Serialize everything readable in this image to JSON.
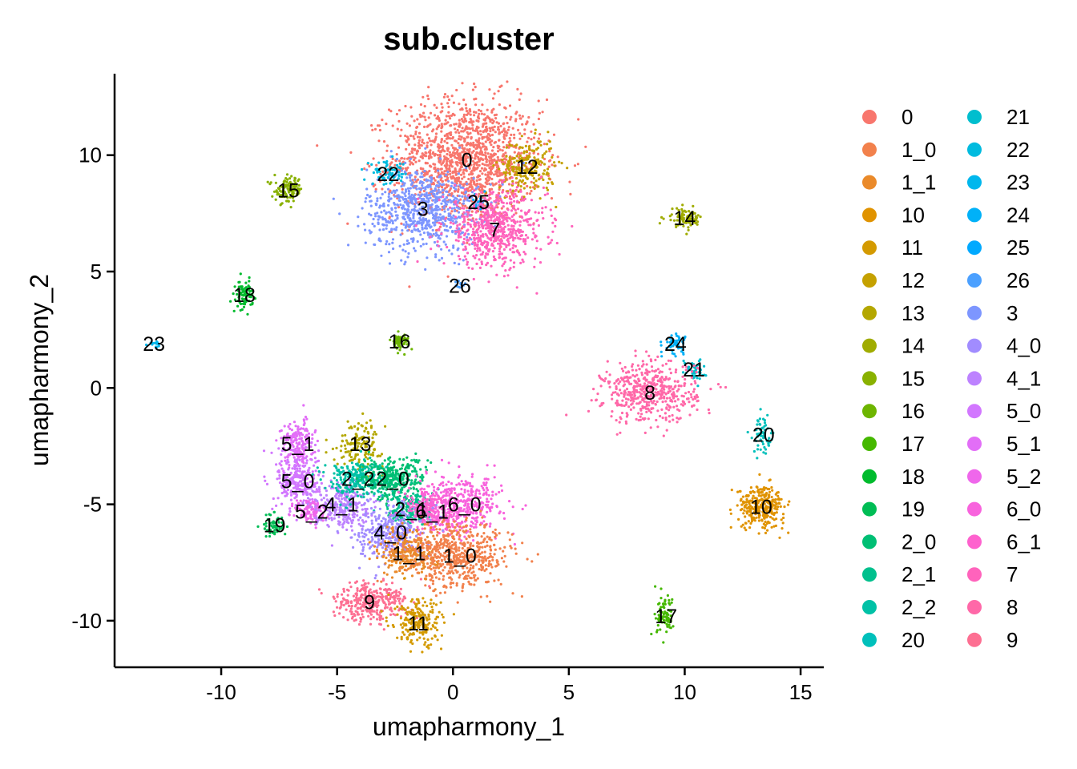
{
  "chart_data": {
    "type": "scatter",
    "title": "sub.cluster",
    "xlabel": "umapharmony_1",
    "ylabel": "umapharmony_2",
    "xlim": [
      -14.6,
      16.0
    ],
    "ylim": [
      -12.0,
      13.5
    ],
    "xticks": [
      -10,
      -5,
      0,
      5,
      10,
      15
    ],
    "yticks": [
      -10,
      -5,
      0,
      5,
      10
    ],
    "legend_position": "right",
    "grid": false,
    "legend": [
      {
        "name": "0",
        "color": "#F8766D"
      },
      {
        "name": "1_0",
        "color": "#F2814C"
      },
      {
        "name": "1_1",
        "color": "#EA8A2A"
      },
      {
        "name": "10",
        "color": "#E09300"
      },
      {
        "name": "11",
        "color": "#D49A00"
      },
      {
        "name": "12",
        "color": "#C5A100"
      },
      {
        "name": "13",
        "color": "#B4A700"
      },
      {
        "name": "14",
        "color": "#A0AC00"
      },
      {
        "name": "15",
        "color": "#89B100"
      },
      {
        "name": "16",
        "color": "#6DB500"
      },
      {
        "name": "17",
        "color": "#45B800"
      },
      {
        "name": "18",
        "color": "#00BB2D"
      },
      {
        "name": "19",
        "color": "#00BD55"
      },
      {
        "name": "2_0",
        "color": "#00BF74"
      },
      {
        "name": "2_1",
        "color": "#00C08D"
      },
      {
        "name": "2_2",
        "color": "#00C1A6"
      },
      {
        "name": "20",
        "color": "#00C0BB"
      },
      {
        "name": "21",
        "color": "#00BECE"
      },
      {
        "name": "22",
        "color": "#00BBDF"
      },
      {
        "name": "23",
        "color": "#00B7ED"
      },
      {
        "name": "24",
        "color": "#00B1F8"
      },
      {
        "name": "25",
        "color": "#00A9FF"
      },
      {
        "name": "26",
        "color": "#4BA0FF"
      },
      {
        "name": "3",
        "color": "#7D96FF"
      },
      {
        "name": "4_0",
        "color": "#A18CFF"
      },
      {
        "name": "4_1",
        "color": "#BD82FF"
      },
      {
        "name": "5_0",
        "color": "#D277FF"
      },
      {
        "name": "5_1",
        "color": "#E26EF7"
      },
      {
        "name": "5_2",
        "color": "#EF67EB"
      },
      {
        "name": "6_0",
        "color": "#F863DD"
      },
      {
        "name": "6_1",
        "color": "#FE61CE"
      },
      {
        "name": "7",
        "color": "#FF63BC"
      },
      {
        "name": "8",
        "color": "#FF68A8"
      },
      {
        "name": "9",
        "color": "#FD6F92"
      }
    ],
    "clusters": [
      {
        "label": "0",
        "color": "#F8766D",
        "x": 0.6,
        "y": 9.8,
        "sx": 1.6,
        "sy": 1.3,
        "n": 1400
      },
      {
        "label": "12",
        "color": "#C5A100",
        "x": 3.2,
        "y": 9.5,
        "sx": 0.6,
        "sy": 0.6,
        "n": 220
      },
      {
        "label": "3",
        "color": "#7D96FF",
        "x": -1.3,
        "y": 7.7,
        "sx": 1.2,
        "sy": 0.9,
        "n": 700
      },
      {
        "label": "25",
        "color": "#00A9FF",
        "x": 1.1,
        "y": 8.0,
        "sx": 0.2,
        "sy": 0.2,
        "n": 20
      },
      {
        "label": "7",
        "color": "#FF63BC",
        "x": 1.8,
        "y": 6.8,
        "sx": 1.1,
        "sy": 0.8,
        "n": 600
      },
      {
        "label": "22",
        "color": "#00BBDF",
        "x": -2.8,
        "y": 9.2,
        "sx": 0.5,
        "sy": 0.25,
        "n": 60
      },
      {
        "label": "15",
        "color": "#89B100",
        "x": -7.1,
        "y": 8.5,
        "sx": 0.3,
        "sy": 0.28,
        "n": 110
      },
      {
        "label": "14",
        "color": "#A0AC00",
        "x": 10.0,
        "y": 7.3,
        "sx": 0.4,
        "sy": 0.2,
        "n": 90
      },
      {
        "label": "26",
        "color": "#4BA0FF",
        "x": 0.3,
        "y": 4.4,
        "sx": 0.1,
        "sy": 0.1,
        "n": 10
      },
      {
        "label": "18",
        "color": "#00BB2D",
        "x": -9.0,
        "y": 4.0,
        "sx": 0.18,
        "sy": 0.3,
        "n": 80
      },
      {
        "label": "23",
        "color": "#00B7ED",
        "x": -12.9,
        "y": 1.9,
        "sx": 0.12,
        "sy": 0.06,
        "n": 15
      },
      {
        "label": "16",
        "color": "#6DB500",
        "x": -2.3,
        "y": 2.0,
        "sx": 0.2,
        "sy": 0.16,
        "n": 60
      },
      {
        "label": "24",
        "color": "#00B1F8",
        "x": 9.6,
        "y": 1.9,
        "sx": 0.25,
        "sy": 0.22,
        "n": 50
      },
      {
        "label": "21",
        "color": "#00BECE",
        "x": 10.4,
        "y": 0.8,
        "sx": 0.25,
        "sy": 0.22,
        "n": 50
      },
      {
        "label": "8",
        "color": "#FF68A8",
        "x": 8.5,
        "y": -0.2,
        "sx": 1.0,
        "sy": 0.65,
        "n": 500
      },
      {
        "label": "20",
        "color": "#00C0BB",
        "x": 13.4,
        "y": -2.0,
        "sx": 0.22,
        "sy": 0.4,
        "n": 60
      },
      {
        "label": "10",
        "color": "#E09300",
        "x": 13.3,
        "y": -5.1,
        "sx": 0.5,
        "sy": 0.45,
        "n": 300
      },
      {
        "label": "13",
        "color": "#B4A700",
        "x": -4.0,
        "y": -2.4,
        "sx": 0.5,
        "sy": 0.5,
        "n": 140
      },
      {
        "label": "5_1",
        "color": "#E26EF7",
        "x": -6.7,
        "y": -2.4,
        "sx": 0.35,
        "sy": 0.5,
        "n": 180
      },
      {
        "label": "5_0",
        "color": "#D277FF",
        "x": -6.7,
        "y": -4.0,
        "sx": 0.45,
        "sy": 0.6,
        "n": 260
      },
      {
        "label": "5_2",
        "color": "#EF67EB",
        "x": -6.1,
        "y": -5.3,
        "sx": 0.35,
        "sy": 0.3,
        "n": 100
      },
      {
        "label": "19",
        "color": "#00BD55",
        "x": -7.7,
        "y": -5.9,
        "sx": 0.25,
        "sy": 0.25,
        "n": 60
      },
      {
        "label": "4_1",
        "color": "#BD82FF",
        "x": -4.8,
        "y": -5.0,
        "sx": 0.6,
        "sy": 0.5,
        "n": 260
      },
      {
        "label": "2_2",
        "color": "#00C1A6",
        "x": -4.1,
        "y": -3.9,
        "sx": 0.7,
        "sy": 0.4,
        "n": 260
      },
      {
        "label": "2_0",
        "color": "#00BF74",
        "x": -2.6,
        "y": -3.9,
        "sx": 0.7,
        "sy": 0.45,
        "n": 300
      },
      {
        "label": "2_1",
        "color": "#00C08D",
        "x": -1.8,
        "y": -5.2,
        "sx": 0.5,
        "sy": 0.4,
        "n": 200
      },
      {
        "label": "6_1",
        "color": "#FE61CE",
        "x": -0.9,
        "y": -5.3,
        "sx": 0.6,
        "sy": 0.45,
        "n": 250
      },
      {
        "label": "6_0",
        "color": "#F863DD",
        "x": 0.5,
        "y": -5.0,
        "sx": 0.8,
        "sy": 0.6,
        "n": 350
      },
      {
        "label": "4_0",
        "color": "#A18CFF",
        "x": -2.7,
        "y": -6.2,
        "sx": 0.7,
        "sy": 0.6,
        "n": 330
      },
      {
        "label": "1_1",
        "color": "#EA8A2A",
        "x": -1.9,
        "y": -7.1,
        "sx": 0.6,
        "sy": 0.5,
        "n": 260
      },
      {
        "label": "1_0",
        "color": "#F2814C",
        "x": 0.3,
        "y": -7.2,
        "sx": 1.1,
        "sy": 0.7,
        "n": 550
      },
      {
        "label": "9",
        "color": "#FD6F92",
        "x": -3.6,
        "y": -9.2,
        "sx": 0.8,
        "sy": 0.4,
        "n": 330
      },
      {
        "label": "11",
        "color": "#D49A00",
        "x": -1.5,
        "y": -10.1,
        "sx": 0.5,
        "sy": 0.5,
        "n": 210
      },
      {
        "label": "17",
        "color": "#45B800",
        "x": 9.2,
        "y": -9.8,
        "sx": 0.22,
        "sy": 0.4,
        "n": 80
      }
    ]
  }
}
